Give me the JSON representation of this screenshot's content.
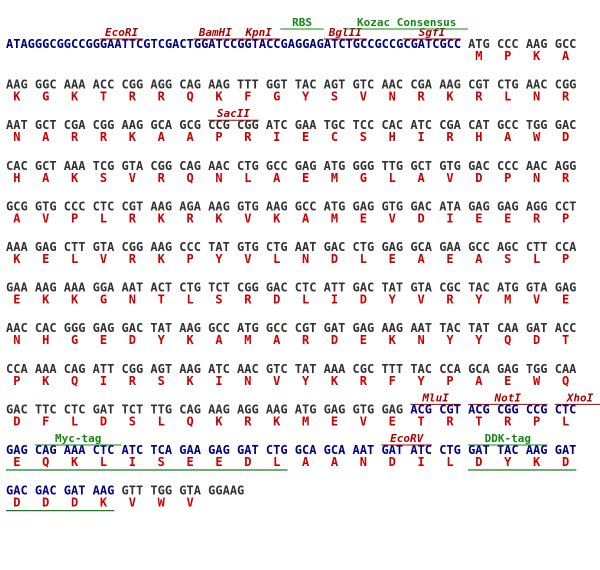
{
  "rows": [
    {
      "prefix": "ATAGGGCGGCCGGGAATTCGTCGACTGGATCCGGTACCGAGGAGATCTGCCGCCGCGATCGCC",
      "codons": [
        "ATG",
        "CCC",
        "AAG",
        "GCC"
      ],
      "aminoacids": [
        "M",
        "P",
        "K",
        "A"
      ],
      "annotations": [
        {
          "label": "EcoRI"
        },
        {
          "label": "BamHI"
        },
        {
          "label": "KpnI"
        },
        {
          "label": "BglII"
        },
        {
          "label": "SgfI"
        },
        {
          "label": "RBS"
        },
        {
          "label": "Kozac Consensus"
        }
      ]
    },
    {
      "codons": [
        "AAG",
        "GGC",
        "AAA",
        "ACC",
        "CGG",
        "AGG",
        "CAG",
        "AAG",
        "TTT",
        "GGT",
        "TAC",
        "AGT",
        "GTC",
        "AAC",
        "CGA",
        "AAG",
        "CGT",
        "CTG",
        "AAC",
        "CGG"
      ],
      "aminoacids": [
        "K",
        "G",
        "K",
        "T",
        "R",
        "R",
        "Q",
        "K",
        "F",
        "G",
        "Y",
        "S",
        "V",
        "N",
        "R",
        "K",
        "R",
        "L",
        "N",
        "R"
      ]
    },
    {
      "codons": [
        "AAT",
        "GCT",
        "CGA",
        "CGG",
        "AAG",
        "GCA",
        "GCG",
        "CCG",
        "CGG",
        "ATC",
        "GAA",
        "TGC",
        "TCC",
        "CAC",
        "ATC",
        "CGA",
        "CAT",
        "GCC",
        "TGG",
        "GAC"
      ],
      "aminoacids": [
        "N",
        "A",
        "R",
        "R",
        "K",
        "A",
        "A",
        "P",
        "R",
        "I",
        "E",
        "C",
        "S",
        "H",
        "I",
        "R",
        "H",
        "A",
        "W",
        "D"
      ],
      "annotations": [
        {
          "label": "SacII"
        }
      ]
    },
    {
      "codons": [
        "CAC",
        "GCT",
        "AAA",
        "TCG",
        "GTA",
        "CGG",
        "CAG",
        "AAC",
        "CTG",
        "GCC",
        "GAG",
        "ATG",
        "GGG",
        "TTG",
        "GCT",
        "GTG",
        "GAC",
        "CCC",
        "AAC",
        "AGG"
      ],
      "aminoacids": [
        "H",
        "A",
        "K",
        "S",
        "V",
        "R",
        "Q",
        "N",
        "L",
        "A",
        "E",
        "M",
        "G",
        "L",
        "A",
        "V",
        "D",
        "P",
        "N",
        "R"
      ]
    },
    {
      "codons": [
        "GCG",
        "GTG",
        "CCC",
        "CTC",
        "CGT",
        "AAG",
        "AGA",
        "AAG",
        "GTG",
        "AAG",
        "GCC",
        "ATG",
        "GAG",
        "GTG",
        "GAC",
        "ATA",
        "GAG",
        "GAG",
        "AGG",
        "CCT"
      ],
      "aminoacids": [
        "A",
        "V",
        "P",
        "L",
        "R",
        "K",
        "R",
        "K",
        "V",
        "K",
        "A",
        "M",
        "E",
        "V",
        "D",
        "I",
        "E",
        "E",
        "R",
        "P"
      ]
    },
    {
      "codons": [
        "AAA",
        "GAG",
        "CTT",
        "GTA",
        "CGG",
        "AAG",
        "CCC",
        "TAT",
        "GTG",
        "CTG",
        "AAT",
        "GAC",
        "CTG",
        "GAG",
        "GCA",
        "GAA",
        "GCC",
        "AGC",
        "CTT",
        "CCA"
      ],
      "aminoacids": [
        "K",
        "E",
        "L",
        "V",
        "R",
        "K",
        "P",
        "Y",
        "V",
        "L",
        "N",
        "D",
        "L",
        "E",
        "A",
        "E",
        "A",
        "S",
        "L",
        "P"
      ]
    },
    {
      "codons": [
        "GAA",
        "AAG",
        "AAA",
        "GGA",
        "AAT",
        "ACT",
        "CTG",
        "TCT",
        "CGG",
        "GAC",
        "CTC",
        "ATT",
        "GAC",
        "TAT",
        "GTA",
        "CGC",
        "TAC",
        "ATG",
        "GTA",
        "GAG"
      ],
      "aminoacids": [
        "E",
        "K",
        "K",
        "G",
        "N",
        "T",
        "L",
        "S",
        "R",
        "D",
        "L",
        "I",
        "D",
        "Y",
        "V",
        "R",
        "Y",
        "M",
        "V",
        "E"
      ]
    },
    {
      "codons": [
        "AAC",
        "CAC",
        "GGG",
        "GAG",
        "GAC",
        "TAT",
        "AAG",
        "GCC",
        "ATG",
        "GCC",
        "CGT",
        "GAT",
        "GAG",
        "AAG",
        "AAT",
        "TAC",
        "TAT",
        "CAA",
        "GAT",
        "ACC"
      ],
      "aminoacids": [
        "N",
        "H",
        "G",
        "E",
        "D",
        "Y",
        "K",
        "A",
        "M",
        "A",
        "R",
        "D",
        "E",
        "K",
        "N",
        "Y",
        "Y",
        "Q",
        "D",
        "T"
      ]
    },
    {
      "codons": [
        "CCA",
        "AAA",
        "CAG",
        "ATT",
        "CGG",
        "AGT",
        "AAG",
        "ATC",
        "AAC",
        "GTC",
        "TAT",
        "AAA",
        "CGC",
        "TTT",
        "TAC",
        "CCA",
        "GCA",
        "GAG",
        "TGG",
        "CAA"
      ],
      "aminoacids": [
        "P",
        "K",
        "Q",
        "I",
        "R",
        "S",
        "K",
        "I",
        "N",
        "V",
        "Y",
        "K",
        "R",
        "F",
        "Y",
        "P",
        "A",
        "E",
        "W",
        "Q"
      ]
    },
    {
      "codons": [
        "GAC",
        "TTC",
        "CTC",
        "GAT",
        "TCT",
        "TTG",
        "CAG",
        "AAG",
        "AGG",
        "AAG",
        "ATG",
        "GAG",
        "GTG",
        "GAG",
        "ACG",
        "CGT",
        "ACG",
        "CGG",
        "CCG",
        "CTC"
      ],
      "aminoacids": [
        "D",
        "F",
        "L",
        "D",
        "S",
        "L",
        "Q",
        "K",
        "R",
        "K",
        "M",
        "E",
        "V",
        "E",
        "T",
        "R",
        "T",
        "R",
        "P",
        "L"
      ],
      "annotations": [
        {
          "label": "MluI"
        },
        {
          "label": "NotI"
        },
        {
          "label": "XhoI"
        }
      ]
    },
    {
      "codons": [
        "GAG",
        "CAG",
        "AAA",
        "CTC",
        "ATC",
        "TCA",
        "GAA",
        "GAG",
        "GAT",
        "CTG",
        "GCA",
        "GCA",
        "AAT",
        "GAT",
        "ATC",
        "CTG",
        "GAT",
        "TAC",
        "AAG",
        "GAT"
      ],
      "aminoacids": [
        "E",
        "Q",
        "K",
        "L",
        "I",
        "S",
        "E",
        "E",
        "D",
        "L",
        "A",
        "A",
        "N",
        "D",
        "I",
        "L",
        "D",
        "Y",
        "K",
        "D"
      ],
      "annotations": [
        {
          "label": "Myc-tag"
        },
        {
          "label": "EcoRV"
        },
        {
          "label": "DDK-tag"
        }
      ]
    },
    {
      "codons": [
        "GAC",
        "GAC",
        "GAT",
        "AAG",
        "GTT",
        "TGG",
        "GTA",
        "GGAAG"
      ],
      "aminoacids": [
        "D",
        "D",
        "D",
        "K",
        "V",
        "W",
        "V"
      ]
    }
  ]
}
